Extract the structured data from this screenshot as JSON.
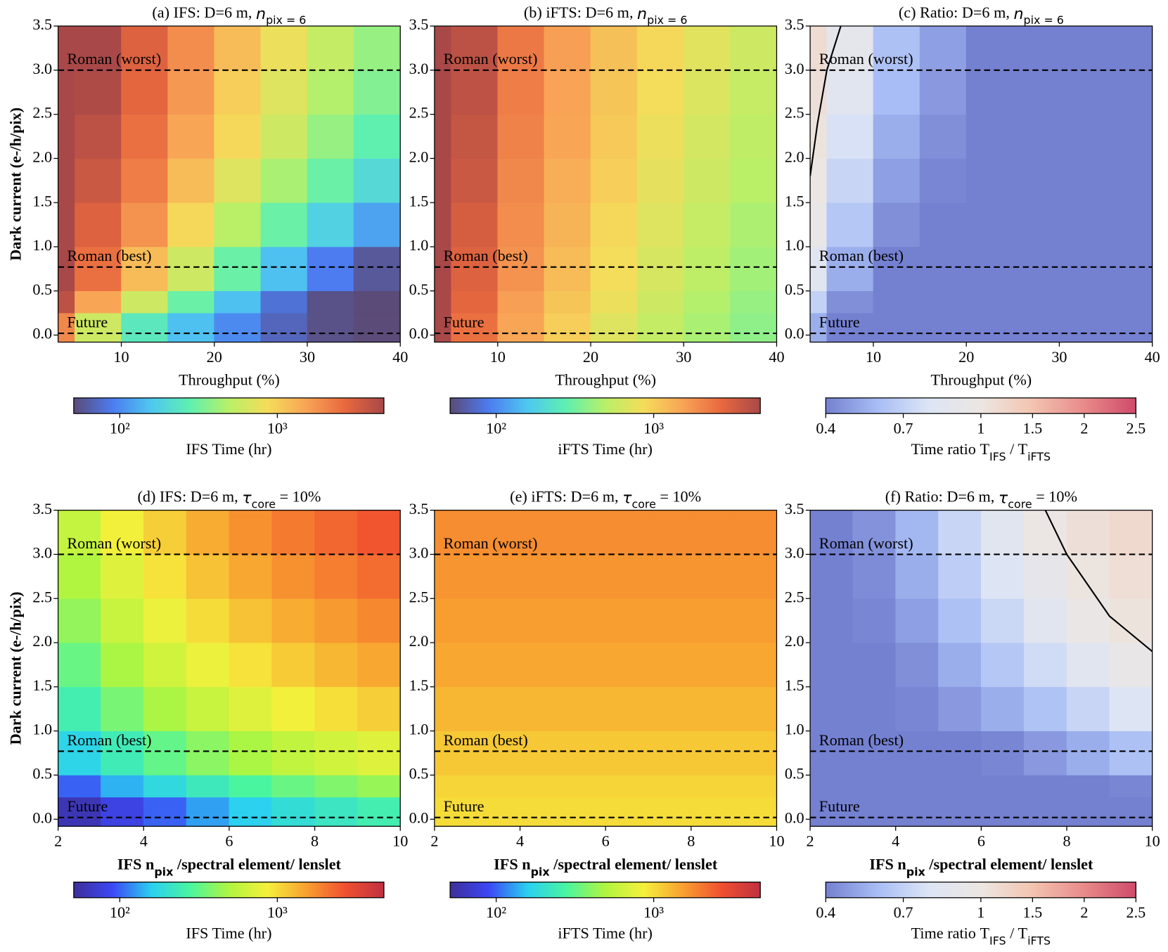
{
  "chart_data": [
    {
      "type": "heatmap",
      "title": [
        {
          "text": "(a) IFS: D=6 m, "
        },
        {
          "italic": "n"
        },
        {
          "sub": "pix = 6"
        }
      ],
      "xlabel": [
        {
          "text": "Throughput (%)"
        }
      ],
      "ylabel": "Dark current (e-/h/pix)",
      "xlim": [
        3.2,
        40
      ],
      "xticks": [
        10,
        20,
        30,
        40
      ],
      "ylim": [
        -0.08,
        3.5
      ],
      "yticks": [
        {
          "value": 0,
          "label": "0.0"
        },
        0.5,
        {
          "value": 1,
          "label": "1.0"
        },
        1.5,
        {
          "value": 2,
          "label": "2.0"
        },
        2.5,
        {
          "value": 3,
          "label": "3.0"
        },
        3.5
      ],
      "xbins": [
        3.2,
        5,
        10,
        15,
        20,
        25,
        30,
        35,
        40
      ],
      "ybins": [
        -0.08,
        0.25,
        0.5,
        1,
        1.5,
        2,
        2.5,
        3,
        3.5
      ],
      "z": [
        [
          2000,
          600,
          250,
          150,
          100,
          70,
          55,
          50
        ],
        [
          4000,
          1500,
          600,
          300,
          150,
          80,
          55,
          50
        ],
        [
          5000,
          2500,
          1200,
          600,
          300,
          150,
          90,
          60
        ],
        [
          5000,
          3000,
          1800,
          900,
          500,
          300,
          180,
          120
        ],
        [
          5000,
          3500,
          2200,
          1200,
          700,
          450,
          300,
          200
        ],
        [
          5000,
          4000,
          2500,
          1500,
          900,
          600,
          400,
          280
        ],
        [
          5000,
          4500,
          2800,
          1700,
          1000,
          700,
          480,
          350
        ],
        [
          5000,
          5000,
          3000,
          1900,
          1200,
          800,
          550,
          400
        ]
      ],
      "norm": "log",
      "zlim": [
        51,
        4750
      ],
      "colors": [
        "#5b4b78",
        "#4c7cf0",
        "#4ec8f0",
        "#5ff0b0",
        "#b8f068",
        "#f5dc5a",
        "#f8a456",
        "#e8683e",
        "#a84848"
      ],
      "hlines": [
        {
          "y": 3,
          "label": "Roman (worst)"
        },
        {
          "y": 0.77,
          "label": "Roman (best)"
        },
        {
          "y": 0.02,
          "label": "Future"
        }
      ],
      "colorbar": {
        "label": [
          {
            "text": "IFS Time (hr)"
          }
        ],
        "ticks": [
          {
            "value": 100,
            "label": "10²"
          },
          {
            "value": 1000,
            "label": "10³"
          }
        ]
      }
    },
    {
      "type": "heatmap",
      "title": [
        {
          "text": "(b) iFTS: D=6 m, "
        },
        {
          "italic": "n"
        },
        {
          "sub": "pix = 6"
        }
      ],
      "xlabel": [
        {
          "text": "Throughput (%)"
        }
      ],
      "xlim": [
        3.2,
        40
      ],
      "xticks": [
        10,
        20,
        30,
        40
      ],
      "ylim": [
        -0.08,
        3.5
      ],
      "yticks": [
        {
          "value": 0,
          "label": "0.0"
        },
        0.5,
        {
          "value": 1,
          "label": "1.0"
        },
        1.5,
        {
          "value": 2,
          "label": "2.0"
        },
        2.5,
        {
          "value": 3,
          "label": "3.0"
        },
        3.5
      ],
      "xbins": [
        3.2,
        5,
        10,
        15,
        20,
        25,
        30,
        35,
        40
      ],
      "ybins": [
        -0.08,
        0.25,
        0.5,
        1,
        1.5,
        2,
        2.5,
        3,
        3.5
      ],
      "z": [
        [
          5000,
          2500,
          1500,
          1000,
          700,
          550,
          450,
          380
        ],
        [
          5000,
          2800,
          1600,
          1100,
          800,
          600,
          480,
          400
        ],
        [
          5000,
          3000,
          1800,
          1200,
          850,
          650,
          520,
          430
        ],
        [
          5000,
          3200,
          1900,
          1300,
          900,
          700,
          560,
          460
        ],
        [
          5000,
          3500,
          2000,
          1400,
          1000,
          750,
          600,
          500
        ],
        [
          5000,
          3700,
          2100,
          1500,
          1050,
          800,
          640,
          530
        ],
        [
          5000,
          3900,
          2200,
          1550,
          1100,
          850,
          680,
          560
        ],
        [
          5000,
          4000,
          2300,
          1600,
          1150,
          900,
          720,
          600
        ]
      ],
      "norm": "log",
      "zlim": [
        51,
        4750
      ],
      "colors": [
        "#5b4b78",
        "#4c7cf0",
        "#4ec8f0",
        "#5ff0b0",
        "#b8f068",
        "#f5dc5a",
        "#f8a456",
        "#e8683e",
        "#a84848"
      ],
      "hlines": [
        {
          "y": 3,
          "label": "Roman (worst)"
        },
        {
          "y": 0.77,
          "label": "Roman (best)"
        },
        {
          "y": 0.02,
          "label": "Future"
        }
      ],
      "colorbar": {
        "label": [
          {
            "text": "iFTS Time (hr)"
          }
        ],
        "ticks": [
          {
            "value": 100,
            "label": "10²"
          },
          {
            "value": 1000,
            "label": "10³"
          }
        ]
      }
    },
    {
      "type": "heatmap",
      "title": [
        {
          "text": "(c) Ratio: D=6 m, "
        },
        {
          "italic": "n"
        },
        {
          "sub": "pix = 6"
        }
      ],
      "xlabel": [
        {
          "text": "Throughput (%)"
        }
      ],
      "xlim": [
        3.2,
        40
      ],
      "xticks": [
        10,
        20,
        30,
        40
      ],
      "ylim": [
        -0.08,
        3.5
      ],
      "yticks": [
        {
          "value": 0,
          "label": "0.0"
        },
        0.5,
        {
          "value": 1,
          "label": "1.0"
        },
        1.5,
        {
          "value": 2,
          "label": "2.0"
        },
        2.5,
        {
          "value": 3,
          "label": "3.0"
        },
        3.5
      ],
      "xbins": [
        3.2,
        5,
        10,
        15,
        20,
        25,
        30,
        35,
        40
      ],
      "ybins": [
        -0.08,
        0.25,
        0.5,
        1,
        1.5,
        2,
        2.5,
        3,
        3.5
      ],
      "z": [
        [
          0.55,
          0.4,
          0.4,
          0.4,
          0.4,
          0.4,
          0.4,
          0.4
        ],
        [
          0.7,
          0.45,
          0.4,
          0.4,
          0.4,
          0.4,
          0.4,
          0.4
        ],
        [
          0.85,
          0.55,
          0.4,
          0.4,
          0.4,
          0.4,
          0.4,
          0.4
        ],
        [
          0.95,
          0.65,
          0.45,
          0.4,
          0.4,
          0.4,
          0.4,
          0.4
        ],
        [
          1.0,
          0.72,
          0.5,
          0.42,
          0.4,
          0.4,
          0.4,
          0.4
        ],
        [
          1.05,
          0.78,
          0.55,
          0.45,
          0.4,
          0.4,
          0.4,
          0.4
        ],
        [
          1.1,
          0.85,
          0.6,
          0.48,
          0.4,
          0.4,
          0.4,
          0.4
        ],
        [
          1.15,
          0.9,
          0.62,
          0.5,
          0.4,
          0.4,
          0.4,
          0.4
        ]
      ],
      "norm": "twoslope",
      "zlim": [
        0.4,
        2.5
      ],
      "vcenter": 1,
      "colors": [
        "#7480d0",
        "#a8bdf5",
        "#dde5f5",
        "#ece6e2",
        "#f3c4b0",
        "#e88a8a",
        "#d04a6a"
      ],
      "contour": {
        "level": 1,
        "x": [
          3.2,
          4,
          5,
          6.5
        ],
        "y": [
          1.8,
          2.4,
          3.0,
          3.5
        ]
      },
      "hlines": [
        {
          "y": 3,
          "label": "Roman (worst)"
        },
        {
          "y": 0.77,
          "label": "Roman (best)"
        },
        {
          "y": 0.02,
          "label": "Future"
        }
      ],
      "colorbar": {
        "label": [
          {
            "text": "Time ratio "
          },
          {
            "text": "T"
          },
          {
            "sub": "IFS"
          },
          {
            "text": " / T"
          },
          {
            "sub": "iFTS"
          }
        ],
        "ticks": [
          0.4,
          0.7,
          1,
          1.5,
          2,
          2.5
        ]
      }
    },
    {
      "type": "heatmap",
      "title": [
        {
          "text": "(d) IFS: D=6 m, "
        },
        {
          "italic": "τ"
        },
        {
          "sub": "core"
        },
        {
          "text": " = 10%"
        }
      ],
      "xlabel": [
        {
          "text": "IFS n"
        },
        {
          "sub": "pix"
        },
        {
          "text": " /spectral element/ lenslet"
        }
      ],
      "xlabel_bold": true,
      "ylabel": "Dark current (e-/h/pix)",
      "xlim": [
        2,
        10
      ],
      "xticks": [
        2,
        4,
        6,
        8,
        10
      ],
      "ylim": [
        -0.08,
        3.5
      ],
      "yticks": [
        {
          "value": 0,
          "label": "0.0"
        },
        0.5,
        {
          "value": 1,
          "label": "1.0"
        },
        1.5,
        {
          "value": 2,
          "label": "2.0"
        },
        2.5,
        {
          "value": 3,
          "label": "3.0"
        },
        3.5
      ],
      "xbins": [
        2,
        3,
        4,
        5,
        6,
        7,
        8,
        9,
        10
      ],
      "ybins": [
        -0.08,
        0.25,
        0.5,
        1,
        1.5,
        2,
        2.5,
        3,
        3.5
      ],
      "z": [
        [
          60,
          80,
          100,
          130,
          160,
          190,
          220,
          250
        ],
        [
          100,
          140,
          180,
          230,
          280,
          330,
          380,
          430
        ],
        [
          170,
          240,
          320,
          400,
          480,
          560,
          640,
          720
        ],
        [
          250,
          360,
          480,
          600,
          720,
          850,
          980,
          1100
        ],
        [
          330,
          480,
          640,
          800,
          960,
          1130,
          1300,
          1450
        ],
        [
          420,
          600,
          800,
          1000,
          1200,
          1400,
          1600,
          1800
        ],
        [
          500,
          720,
          960,
          1200,
          1450,
          1700,
          1950,
          2200
        ],
        [
          580,
          850,
          1100,
          1400,
          1700,
          2000,
          2300,
          2600
        ]
      ],
      "norm": "log",
      "zlim": [
        51,
        4750
      ],
      "colors": [
        "#3e2f9a",
        "#3c48f5",
        "#2ad0f0",
        "#4af5a0",
        "#b0f540",
        "#f5f03c",
        "#f8a030",
        "#f05030",
        "#c03040"
      ],
      "hlines": [
        {
          "y": 3,
          "label": "Roman (worst)"
        },
        {
          "y": 0.77,
          "label": "Roman (best)"
        },
        {
          "y": 0.02,
          "label": "Future",
          "label_color": "#ffffff"
        }
      ],
      "colorbar": {
        "label": [
          {
            "text": "IFS Time (hr)"
          }
        ],
        "ticks": [
          {
            "value": 100,
            "label": "10²"
          },
          {
            "value": 1000,
            "label": "10³"
          }
        ]
      }
    },
    {
      "type": "heatmap",
      "title": [
        {
          "text": "(e) iFTS: D=6 m, "
        },
        {
          "italic": "τ"
        },
        {
          "sub": "core"
        },
        {
          "text": " = 10%"
        }
      ],
      "xlabel": [
        {
          "text": "IFS n"
        },
        {
          "sub": "pix"
        },
        {
          "text": " /spectral element/ lenslet"
        }
      ],
      "xlabel_bold": true,
      "xlim": [
        2,
        10
      ],
      "xticks": [
        2,
        4,
        6,
        8,
        10
      ],
      "ylim": [
        -0.08,
        3.5
      ],
      "yticks": [
        {
          "value": 0,
          "label": "0.0"
        },
        0.5,
        {
          "value": 1,
          "label": "1.0"
        },
        1.5,
        {
          "value": 2,
          "label": "2.0"
        },
        2.5,
        {
          "value": 3,
          "label": "3.0"
        },
        3.5
      ],
      "xbins": [
        2,
        3,
        4,
        5,
        6,
        7,
        8,
        9,
        10
      ],
      "ybins": [
        -0.08,
        0.25,
        0.5,
        1,
        1.5,
        2,
        2.5,
        3,
        3.5
      ],
      "z": [
        [
          1000,
          1000,
          1000,
          1000,
          1000,
          1000,
          1000,
          1000
        ],
        [
          1050,
          1050,
          1050,
          1050,
          1050,
          1050,
          1050,
          1050
        ],
        [
          1150,
          1150,
          1150,
          1150,
          1150,
          1150,
          1150,
          1150
        ],
        [
          1300,
          1300,
          1300,
          1300,
          1300,
          1300,
          1300,
          1300
        ],
        [
          1450,
          1450,
          1450,
          1450,
          1450,
          1450,
          1450,
          1450
        ],
        [
          1550,
          1550,
          1550,
          1550,
          1550,
          1550,
          1550,
          1550
        ],
        [
          1650,
          1650,
          1650,
          1650,
          1650,
          1650,
          1650,
          1650
        ],
        [
          1750,
          1750,
          1750,
          1750,
          1750,
          1750,
          1750,
          1750
        ]
      ],
      "norm": "log",
      "zlim": [
        51,
        4750
      ],
      "colors": [
        "#3e2f9a",
        "#3c48f5",
        "#2ad0f0",
        "#4af5a0",
        "#b0f540",
        "#f5f03c",
        "#f8a030",
        "#f05030",
        "#c03040"
      ],
      "hlines": [
        {
          "y": 3,
          "label": "Roman (worst)"
        },
        {
          "y": 0.77,
          "label": "Roman (best)"
        },
        {
          "y": 0.02,
          "label": "Future"
        }
      ],
      "colorbar": {
        "label": [
          {
            "text": "iFTS Time (hr)"
          }
        ],
        "ticks": [
          {
            "value": 100,
            "label": "10²"
          },
          {
            "value": 1000,
            "label": "10³"
          }
        ]
      }
    },
    {
      "type": "heatmap",
      "title": [
        {
          "text": "(f) Ratio: D=6 m, "
        },
        {
          "italic": "τ"
        },
        {
          "sub": "core"
        },
        {
          "text": " = 10%"
        }
      ],
      "xlabel": [
        {
          "text": "IFS n"
        },
        {
          "sub": "pix"
        },
        {
          "text": " /spectral element/ lenslet"
        }
      ],
      "xlabel_bold": true,
      "xlim": [
        2,
        10
      ],
      "xticks": [
        2,
        4,
        6,
        8,
        10
      ],
      "ylim": [
        -0.08,
        3.5
      ],
      "yticks": [
        {
          "value": 0,
          "label": "0.0"
        },
        0.5,
        {
          "value": 1,
          "label": "1.0"
        },
        1.5,
        {
          "value": 2,
          "label": "2.0"
        },
        2.5,
        {
          "value": 3,
          "label": "3.0"
        },
        3.5
      ],
      "xbins": [
        2,
        3,
        4,
        5,
        6,
        7,
        8,
        9,
        10
      ],
      "ybins": [
        -0.08,
        0.25,
        0.5,
        1,
        1.5,
        2,
        2.5,
        3,
        3.5
      ],
      "z": [
        [
          0.4,
          0.4,
          0.4,
          0.4,
          0.4,
          0.4,
          0.4,
          0.4
        ],
        [
          0.4,
          0.4,
          0.4,
          0.4,
          0.4,
          0.4,
          0.4,
          0.42
        ],
        [
          0.4,
          0.4,
          0.4,
          0.4,
          0.42,
          0.48,
          0.55,
          0.62
        ],
        [
          0.4,
          0.4,
          0.42,
          0.48,
          0.55,
          0.63,
          0.72,
          0.8
        ],
        [
          0.4,
          0.4,
          0.45,
          0.55,
          0.65,
          0.75,
          0.85,
          0.95
        ],
        [
          0.4,
          0.42,
          0.5,
          0.62,
          0.73,
          0.85,
          0.97,
          1.05
        ],
        [
          0.4,
          0.44,
          0.55,
          0.68,
          0.8,
          0.92,
          1.03,
          1.12
        ],
        [
          0.4,
          0.46,
          0.58,
          0.72,
          0.85,
          0.98,
          1.1,
          1.2
        ]
      ],
      "norm": "twoslope",
      "zlim": [
        0.4,
        2.5
      ],
      "vcenter": 1,
      "colors": [
        "#7480d0",
        "#a8bdf5",
        "#dde5f5",
        "#ece6e2",
        "#f3c4b0",
        "#e88a8a",
        "#d04a6a"
      ],
      "contour": {
        "level": 1,
        "x": [
          7.5,
          8,
          9,
          10
        ],
        "y": [
          3.5,
          3.0,
          2.3,
          1.9
        ]
      },
      "hlines": [
        {
          "y": 3,
          "label": "Roman (worst)"
        },
        {
          "y": 0.77,
          "label": "Roman (best)"
        },
        {
          "y": 0.02,
          "label": "Future"
        }
      ],
      "colorbar": {
        "label": [
          {
            "text": "Time ratio "
          },
          {
            "text": "T"
          },
          {
            "sub": "IFS"
          },
          {
            "text": " / T"
          },
          {
            "sub": "iFTS"
          }
        ],
        "ticks": [
          0.4,
          0.7,
          1,
          1.5,
          2,
          2.5
        ]
      }
    }
  ]
}
